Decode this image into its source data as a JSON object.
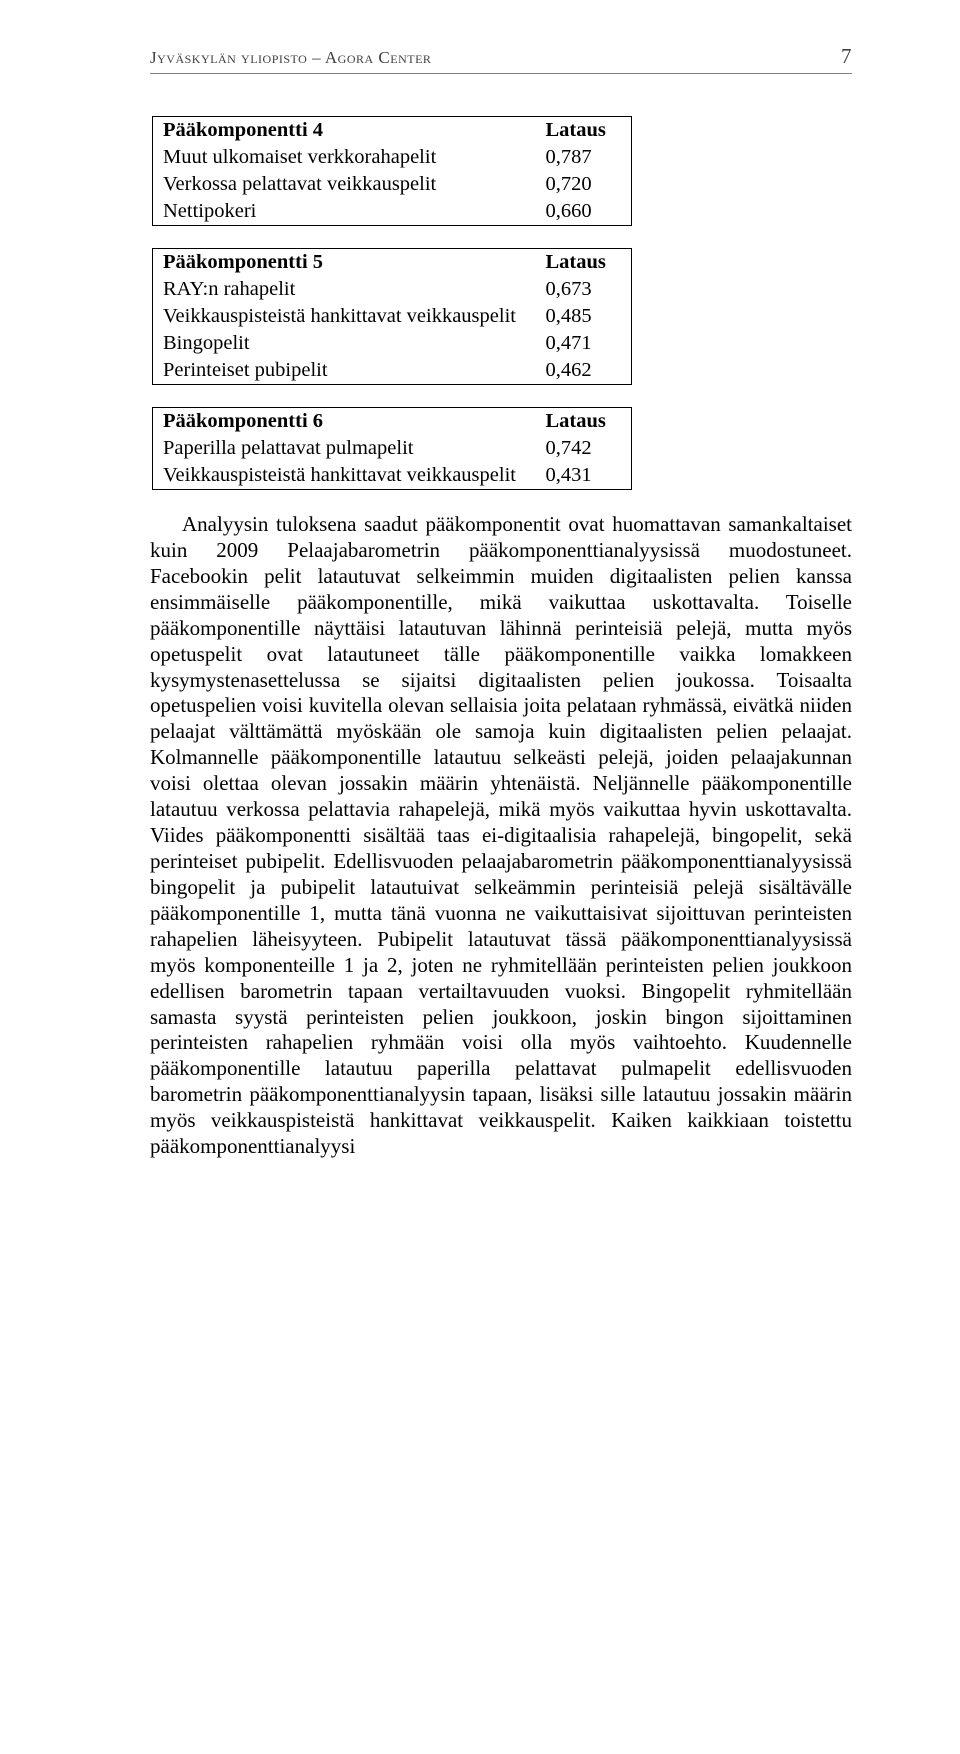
{
  "header": {
    "left": "Jyväskylän yliopisto – Agora Center",
    "page": "7"
  },
  "tables": {
    "t4": {
      "title": "Pääkomponentti 4",
      "loading": "Lataus",
      "rows": [
        {
          "label": "Muut ulkomaiset verkkorahapelit",
          "value": "0,787"
        },
        {
          "label": "Verkossa pelattavat veikkauspelit",
          "value": "0,720"
        },
        {
          "label": "Nettipokeri",
          "value": "0,660"
        }
      ]
    },
    "t5": {
      "title": "Pääkomponentti 5",
      "loading": "Lataus",
      "rows": [
        {
          "label": "RAY:n rahapelit",
          "value": "0,673"
        },
        {
          "label": "Veikkauspisteistä hankittavat veikkauspelit",
          "value": "0,485"
        },
        {
          "label": "Bingopelit",
          "value": "0,471"
        },
        {
          "label": "Perinteiset pubipelit",
          "value": "0,462"
        }
      ]
    },
    "t6": {
      "title": "Pääkomponentti 6",
      "loading": "Lataus",
      "rows": [
        {
          "label": "Paperilla pelattavat pulmapelit",
          "value": "0,742"
        },
        {
          "label": "Veikkauspisteistä hankittavat veikkauspelit",
          "value": "0,431"
        }
      ]
    }
  },
  "body": {
    "text": "Analyysin tuloksena saadut pääkomponentit ovat huomattavan samankaltaiset kuin 2009 Pelaajabarometrin pääkomponenttianalyysissä muodostuneet. Facebookin pelit latautuvat selkeimmin muiden digitaalisten pelien kanssa ensimmäiselle pääkomponentille, mikä vaikuttaa uskottavalta. Toiselle pääkomponentille näyttäisi latautuvan lähinnä perinteisiä pelejä, mutta myös opetuspelit ovat latautuneet tälle pääkomponentille vaikka lomakkeen kysymystenasettelussa se sijaitsi digitaalisten pelien joukossa. Toisaalta opetuspelien voisi kuvitella olevan sellaisia joita pelataan ryhmässä, eivätkä niiden pelaajat välttämättä myöskään ole samoja kuin digitaalisten pelien pelaajat. Kolmannelle pääkomponentille latautuu selkeästi pelejä, joiden pelaajakunnan voisi olettaa olevan jossakin määrin yhtenäistä. Neljännelle pääkomponentille latautuu verkossa pelattavia rahapelejä, mikä myös vaikuttaa hyvin uskottavalta. Viides pääkomponentti sisältää taas ei-digitaalisia rahapelejä, bingopelit, sekä perinteiset pubipelit. Edellisvuoden pelaajabarometrin pääkomponenttianalyysissä bingopelit ja pubipelit latautuivat selkeämmin perinteisiä pelejä sisältävälle pääkomponentille 1, mutta tänä vuonna ne vaikuttaisivat sijoittuvan perinteisten rahapelien läheisyyteen. Pubipelit latautuvat tässä pääkomponenttianalyysissä myös komponenteille 1 ja 2, joten ne ryhmitellään perinteisten pelien joukkoon edellisen barometrin tapaan vertailtavuuden vuoksi. Bingopelit ryhmitellään samasta syystä perinteisten pelien joukkoon, joskin bingon sijoittaminen perinteisten rahapelien ryhmään voisi olla myös vaihtoehto. Kuudennelle pääkomponentille latautuu paperilla pelattavat pulmapelit edellisvuoden barometrin pääkomponenttianalyysin tapaan, lisäksi sille latautuu jossakin määrin myös veikkauspisteistä hankittavat veikkauspelit. Kaiken kaikkiaan toistettu pääkomponenttianalyysi"
  }
}
